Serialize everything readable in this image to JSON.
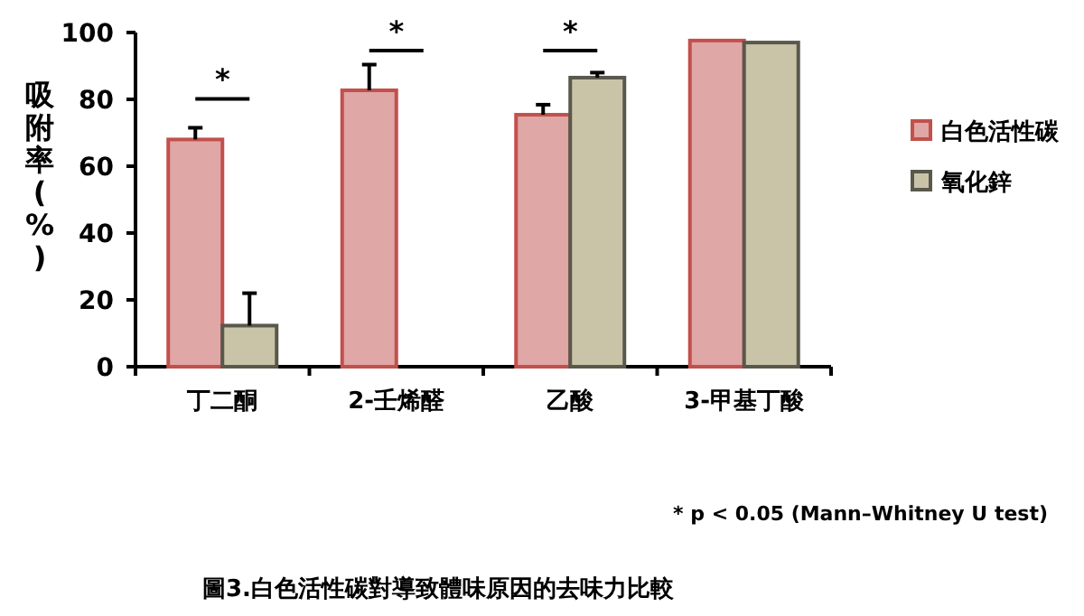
{
  "chart_data": {
    "type": "bar",
    "title": "圖3.白色活性碳對導致體味原因的去味力比較",
    "ylabel": "吸附率(%)",
    "categories": [
      "丁二酮",
      "2-壬烯醛",
      "乙酸",
      "3-甲基丁酸"
    ],
    "series": [
      {
        "name": "白色活性碳",
        "color": "#dfa7a6",
        "values": [
          68,
          82.7,
          75.4,
          97.6
        ],
        "errors": [
          3.5,
          7.7,
          3,
          null
        ]
      },
      {
        "name": "氧化鋅",
        "color": "#c9c4a8",
        "values": [
          12.3,
          null,
          86.5,
          97
        ],
        "errors": [
          9.7,
          null,
          1.5,
          null
        ]
      }
    ],
    "ylim": [
      0,
      100
    ],
    "yticks": [
      0,
      20,
      40,
      60,
      80,
      100
    ],
    "legend": "right",
    "annotations": [
      "*",
      "*",
      "*",
      "* p < 0.05 (Mann–Whitney U test)"
    ]
  }
}
